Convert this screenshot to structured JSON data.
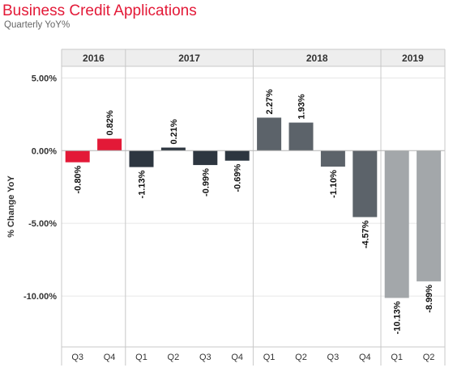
{
  "header": {
    "title": "Business Credit Applications",
    "subtitle": "Quarterly YoY%"
  },
  "colors": {
    "2016": "#e31937",
    "2017": "#2d3640",
    "2018": "#5c636a",
    "2019": "#a3a7aa",
    "title": "#e31937",
    "grid": "#e6e6e6",
    "zero_line": "#b3b3b3",
    "header_bg": "#eeeeee"
  },
  "chart_data": {
    "type": "bar",
    "title": "Business Credit Applications",
    "subtitle": "Quarterly YoY%",
    "ylabel": "% Change YoY",
    "xlabel": "",
    "ylim": [
      -13.5,
      5.8
    ],
    "yticks": [
      5,
      0,
      -5,
      -10
    ],
    "ytick_labels": [
      "5.00%",
      "0.00%",
      "-5.00%",
      "-10.00%"
    ],
    "grid": true,
    "groups": [
      {
        "year": "2016",
        "quarters": [
          "Q3",
          "Q4"
        ],
        "values": [
          -0.8,
          0.82
        ],
        "labels": [
          "-0.80%",
          "0.82%"
        ]
      },
      {
        "year": "2017",
        "quarters": [
          "Q1",
          "Q2",
          "Q3",
          "Q4"
        ],
        "values": [
          -1.13,
          0.21,
          -0.99,
          -0.69
        ],
        "labels": [
          "-1.13%",
          "0.21%",
          "-0.99%",
          "-0.69%"
        ]
      },
      {
        "year": "2018",
        "quarters": [
          "Q1",
          "Q2",
          "Q3",
          "Q4"
        ],
        "values": [
          2.27,
          1.93,
          -1.1,
          -4.57
        ],
        "labels": [
          "2.27%",
          "1.93%",
          "-1.10%",
          "-4.57%"
        ]
      },
      {
        "year": "2019",
        "quarters": [
          "Q1",
          "Q2"
        ],
        "values": [
          -10.13,
          -8.99
        ],
        "labels": [
          "-10.13%",
          "-8.99%"
        ]
      }
    ]
  }
}
